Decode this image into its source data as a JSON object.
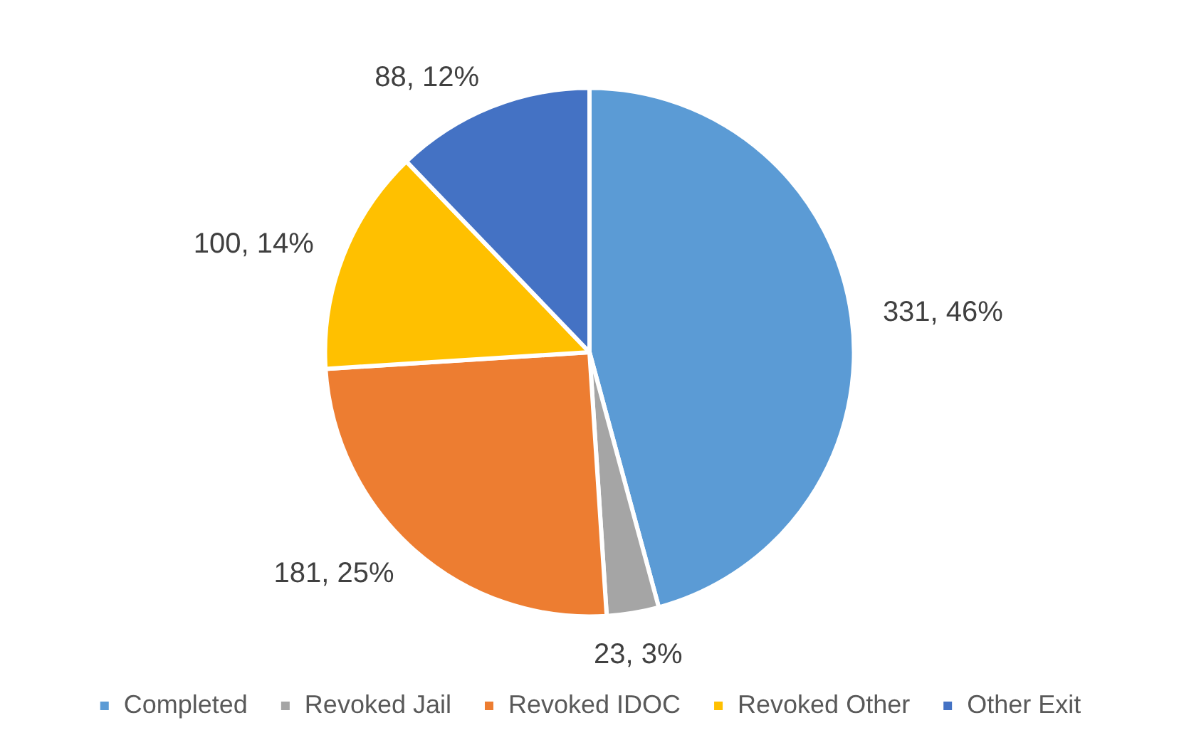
{
  "chart_data": {
    "type": "pie",
    "categories": [
      "Completed",
      "Revoked Jail",
      "Revoked IDOC",
      "Revoked Other",
      "Other Exit"
    ],
    "values": [
      331,
      23,
      181,
      100,
      88
    ],
    "colors": [
      "#5b9bd5",
      "#a5a5a5",
      "#ed7d31",
      "#ffc000",
      "#4472c4"
    ],
    "value_labels": [
      "331, 46%",
      "23, 3%",
      "181, 25%",
      "100, 14%",
      "88, 12%"
    ],
    "legend": "bottom"
  }
}
